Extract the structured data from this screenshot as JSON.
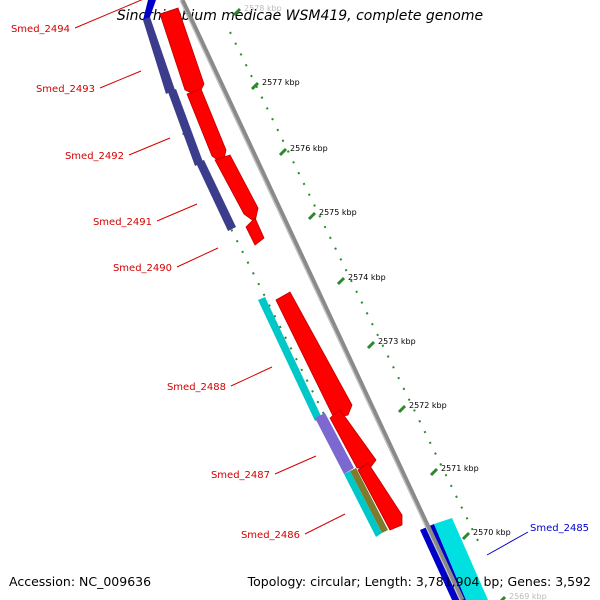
{
  "title": "Sinorhizobium medicae WSM419, complete genome",
  "footer": {
    "accession": "Accession: NC_009636",
    "summary": "Topology: circular; Length: 3,781,904 bp; Genes: 3,592"
  },
  "kbp_labels": [
    "2578 kbp",
    "2577 kbp",
    "2576 kbp",
    "2575 kbp",
    "2574 kbp",
    "2573 kbp",
    "2572 kbp",
    "2571 kbp",
    "2570 kbp",
    "2569 kbp"
  ],
  "genes": [
    {
      "label": "Smed_2494",
      "color": "#d40000"
    },
    {
      "label": "Smed_2493",
      "color": "#d40000"
    },
    {
      "label": "Smed_2492",
      "color": "#d40000"
    },
    {
      "label": "Smed_2491",
      "color": "#d40000"
    },
    {
      "label": "Smed_2490",
      "color": "#d40000"
    },
    {
      "label": "Smed_2488",
      "color": "#d40000"
    },
    {
      "label": "Smed_2487",
      "color": "#d40000"
    },
    {
      "label": "Smed_2486",
      "color": "#d40000"
    },
    {
      "label": "Smed_2485",
      "color": "#0000cc"
    }
  ],
  "colors": {
    "backbone": "#8a8a8a",
    "feature_red": "#ff0000",
    "cog_purple": "#3c3c8c",
    "cog_cyan": "#00c8c8",
    "cog_blue": "#0000c8",
    "cog_lavender": "#7c68d0",
    "cog_olive": "#7c7c2c",
    "tick_green": "#2a8a2a",
    "label_red": "#d40000",
    "label_blue": "#0000cc"
  }
}
